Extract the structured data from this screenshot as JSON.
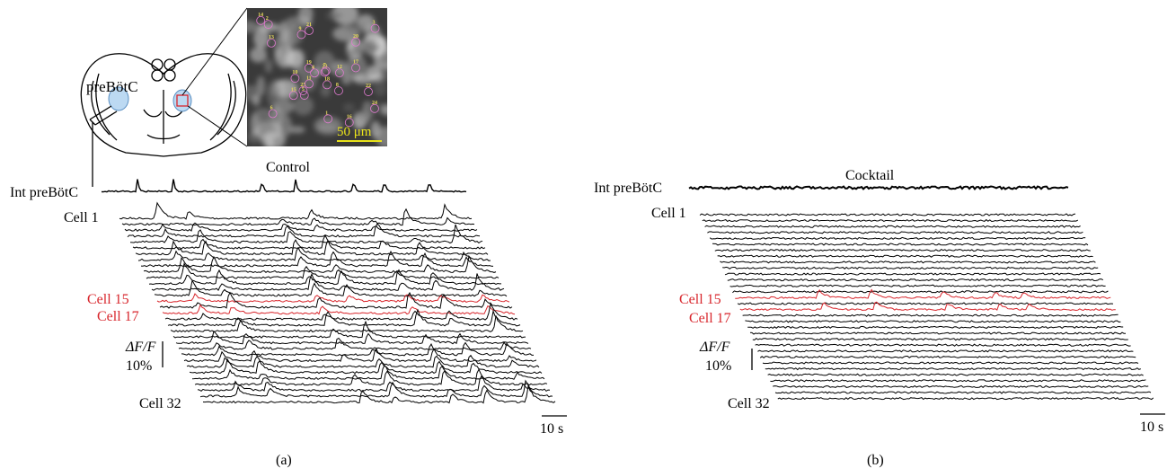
{
  "panel_a": {
    "panel_label": "(a)",
    "region_label": "preBötC",
    "scale_bar_micro": "50 μm",
    "condition_title": "Control",
    "int_label": "Int preBötC",
    "cell_first_label": "Cell 1",
    "cell_15_label": "Cell 15",
    "cell_17_label": "Cell 17",
    "cell_last_label": "Cell 32",
    "dff_label": "ΔF/F",
    "dff_scale": "10%",
    "time_scale": "10 s",
    "roi_numbers": [
      "23",
      "18",
      "22",
      "24",
      "19",
      "16",
      "17",
      "21",
      "12",
      "15",
      "25",
      "14",
      "11",
      "13",
      "20",
      "6",
      "4",
      "5",
      "3",
      "2",
      "8",
      "7",
      "9",
      "10",
      "1"
    ]
  },
  "panel_b": {
    "panel_label": "(b)",
    "condition_title": "Cocktail",
    "int_label": "Int preBötC",
    "cell_first_label": "Cell 1",
    "cell_15_label": "Cell 15",
    "cell_17_label": "Cell 17",
    "cell_last_label": "Cell 32",
    "dff_label": "ΔF/F",
    "dff_scale": "10%",
    "time_scale": "10 s"
  },
  "colors": {
    "trace": "#000000",
    "highlight": "#d8262c",
    "scale_bar": "#e8e21a",
    "roi_circle": "#e07ad0",
    "preBotC_fill": "#bcd9f2"
  }
}
